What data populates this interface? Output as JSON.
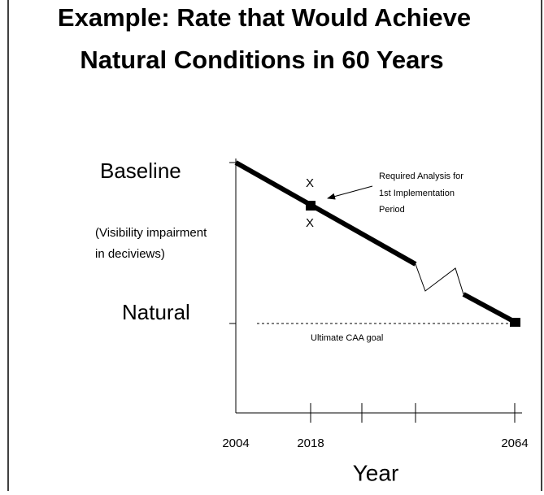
{
  "header": {
    "title": [
      "Example:  Rate that Would Achieve",
      "Natural Conditions in 60 Years"
    ]
  },
  "diagram": {
    "y_labels": {
      "top": "Baseline",
      "bottom": "Natural",
      "unit": [
        "(Visibility impairment",
        "in deciviews)"
      ]
    },
    "x_labels": [
      "2004",
      "2018",
      "2064"
    ],
    "x_axis_title": "Year",
    "marks": [
      "X",
      "X"
    ],
    "annotation": [
      "Required Analysis for",
      "1st Implementation",
      "Period"
    ],
    "goal_label": "Ultimate CAA goal"
  }
}
